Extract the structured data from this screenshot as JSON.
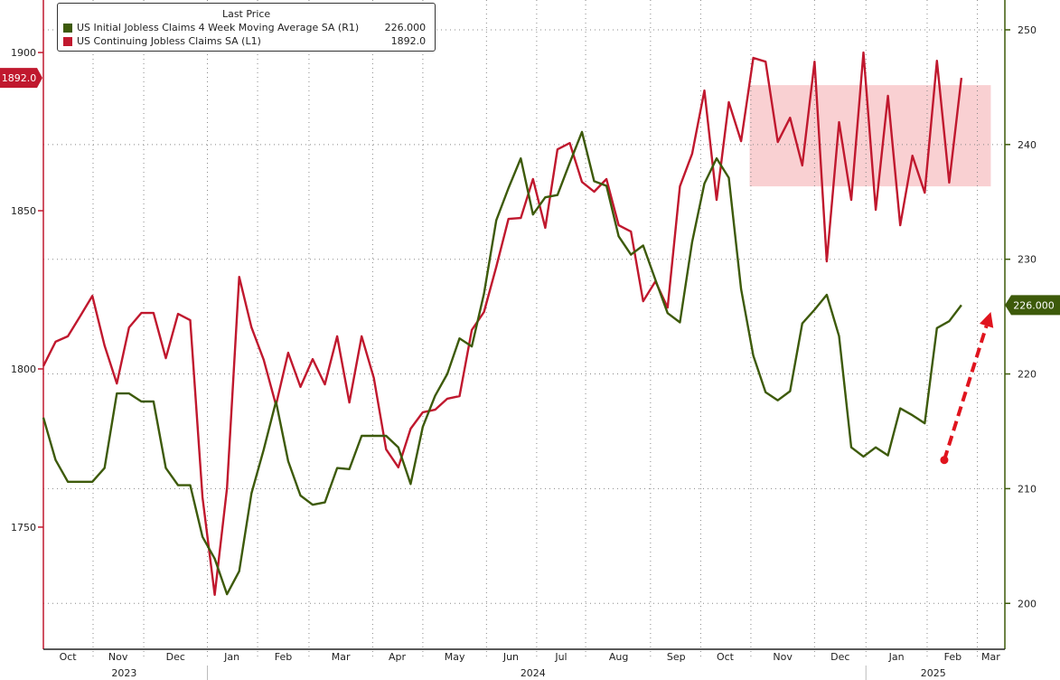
{
  "chart_data": {
    "type": "line",
    "title": "",
    "legend": {
      "header": "Last Price",
      "placement": "top-left",
      "entries": [
        {
          "name": "US Initial Jobless Claims 4 Week Moving Average SA  (R1)",
          "last": "226.000",
          "color": "#3d5a0a"
        },
        {
          "name": "US Continuing Jobless Claims SA  (L1)",
          "last": "1892.0",
          "color": "#c0182e"
        }
      ]
    },
    "x_unit": "week index",
    "x_range": [
      0,
      77
    ],
    "left_axis": {
      "ylim": [
        1711.4,
        1916.6
      ],
      "ticks": [
        "1750",
        "1800",
        "1850",
        "1900"
      ],
      "tick_values": [
        1750,
        1800,
        1850,
        1900
      ],
      "tag": "1892.0"
    },
    "right_axis": {
      "ylim": [
        196,
        252.6
      ],
      "ticks": [
        "200",
        "210",
        "220",
        "230",
        "240",
        "250"
      ],
      "tick_values": [
        200,
        210,
        220,
        230,
        240,
        250
      ],
      "tag": "226.000"
    },
    "month_boundaries": [
      4.06,
      8.2,
      13.4,
      17.5,
      21.7,
      26.9,
      31.0,
      36.2,
      40.3,
      44.3,
      49.6,
      53.7,
      57.8,
      63.0,
      67.2,
      72.2,
      76.3
    ],
    "months": [
      {
        "label": "Oct",
        "week": 2.0
      },
      {
        "label": "Nov",
        "week": 6.1
      },
      {
        "label": "Dec",
        "week": 10.8
      },
      {
        "label": "Jan",
        "week": 15.4
      },
      {
        "label": "Feb",
        "week": 19.6
      },
      {
        "label": "Mar",
        "week": 24.3
      },
      {
        "label": "Apr",
        "week": 28.9
      },
      {
        "label": "May",
        "week": 33.6
      },
      {
        "label": "Jun",
        "week": 38.2
      },
      {
        "label": "Jul",
        "week": 42.3
      },
      {
        "label": "Aug",
        "week": 47.0
      },
      {
        "label": "Sep",
        "week": 51.7
      },
      {
        "label": "Oct",
        "week": 55.7
      },
      {
        "label": "Nov",
        "week": 60.4
      },
      {
        "label": "Dec",
        "week": 65.1
      },
      {
        "label": "Jan",
        "week": 69.7
      },
      {
        "label": "Feb",
        "week": 74.3
      },
      {
        "label": "Mar",
        "week": 77.4
      }
    ],
    "years": [
      {
        "label": "2023",
        "week": 6.6
      },
      {
        "label": "2024",
        "week": 40.0
      },
      {
        "label": "2025",
        "week": 72.7
      }
    ],
    "year_dividers": [
      13.4,
      67.2
    ],
    "series": [
      {
        "name": "US Continuing Jobless Claims SA",
        "axis": "left",
        "color": "#c0182e",
        "values": [
          1800.9,
          1808.6,
          1810.3,
          1816.6,
          1823.1,
          1807.4,
          1795.4,
          1813.1,
          1817.7,
          1817.7,
          1803.4,
          1817.4,
          1815.4,
          1759.4,
          1728.6,
          1762.3,
          1829.1,
          1813.1,
          1802.9,
          1788.6,
          1805.1,
          1794.3,
          1803.1,
          1795.1,
          1810.3,
          1789.4,
          1810.3,
          1797.1,
          1774.6,
          1768.9,
          1781.1,
          1786.3,
          1787.1,
          1790.6,
          1791.4,
          1812.3,
          1818.0,
          1832.3,
          1847.4,
          1847.7,
          1860.0,
          1844.6,
          1869.4,
          1871.4,
          1859.1,
          1856.0,
          1860.0,
          1845.4,
          1843.4,
          1821.4,
          1827.7,
          1819.4,
          1857.7,
          1868.0,
          1888.0,
          1853.4,
          1884.3,
          1872.0,
          1898.3,
          1897.1,
          1871.7,
          1879.4,
          1864.3,
          1897.1,
          1834.0,
          1878.0,
          1853.4,
          1900.0,
          1850.3,
          1886.3,
          1845.4,
          1867.4,
          1855.7,
          1897.4,
          1858.9,
          1892.0
        ]
      },
      {
        "name": "US Initial Jobless Claims 4 Week Moving Average SA",
        "axis": "right",
        "color": "#3d5a0a",
        "values": [
          216.2,
          212.5,
          210.6,
          210.6,
          210.6,
          211.8,
          218.3,
          218.3,
          217.6,
          217.6,
          211.8,
          210.3,
          210.3,
          205.8,
          203.9,
          200.8,
          202.8,
          209.6,
          213.4,
          217.6,
          212.4,
          209.4,
          208.6,
          208.8,
          211.8,
          211.7,
          214.6,
          214.6,
          214.6,
          213.6,
          210.4,
          215.4,
          218.1,
          220.0,
          223.1,
          222.4,
          227.0,
          233.4,
          236.2,
          238.8,
          233.9,
          235.4,
          235.6,
          238.4,
          241.1,
          236.8,
          236.4,
          232.0,
          230.4,
          231.2,
          228.2,
          225.3,
          224.5,
          231.5,
          236.6,
          238.8,
          237.1,
          227.4,
          221.6,
          218.4,
          217.7,
          218.5,
          224.4,
          225.6,
          226.9,
          223.3,
          213.6,
          212.8,
          213.6,
          212.9,
          217.0,
          216.4,
          215.7,
          224.0,
          224.6,
          226.0
        ]
      }
    ],
    "annotations": [
      {
        "type": "shaded-range",
        "axis": "left",
        "x_range": [
          57.7,
          77.4
        ],
        "y_range": [
          1857.7,
          1889.7
        ],
        "color": "#f9d0d2"
      },
      {
        "type": "dashed-arrow",
        "axis": "right",
        "from": [
          73.6,
          212.5
        ],
        "to": [
          77.4,
          225.4
        ],
        "color": "#e0141e"
      }
    ]
  }
}
